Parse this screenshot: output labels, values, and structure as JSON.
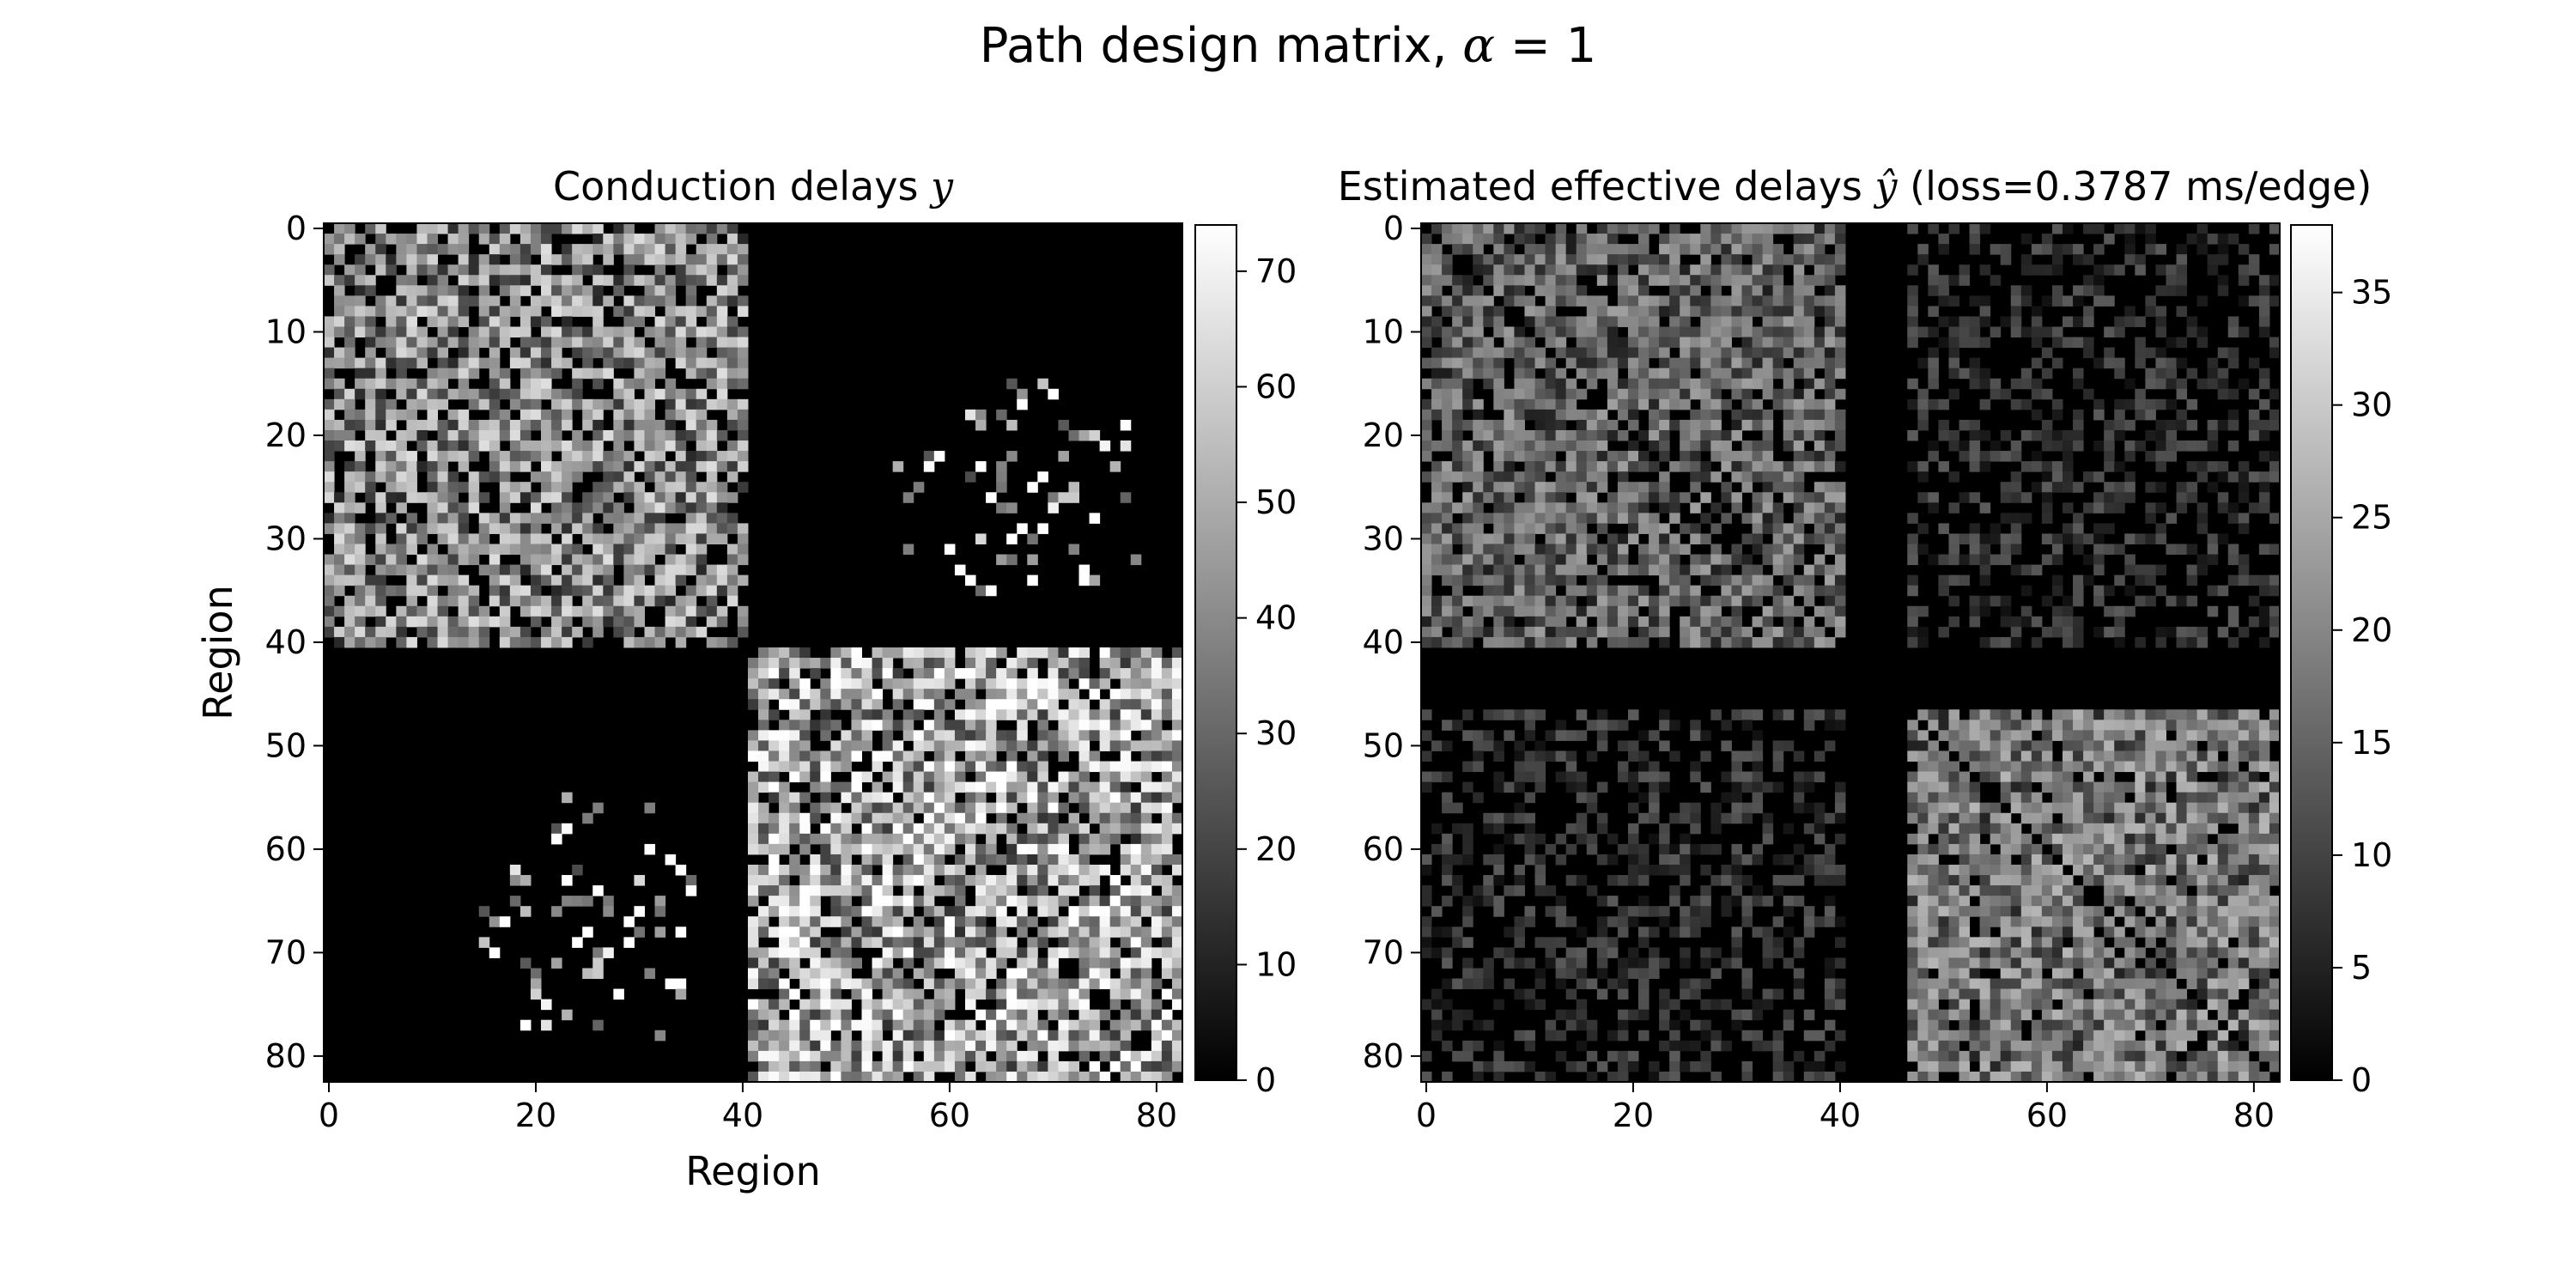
{
  "figure": {
    "suptitle_prefix": "Path design matrix, ",
    "suptitle_symbol": "α",
    "suptitle_suffix": " = 1"
  },
  "chart_data": [
    {
      "type": "heatmap",
      "title_text": "Conduction delays ",
      "title_symbol": "y",
      "xlabel": "Region",
      "ylabel": "Region",
      "size": 83,
      "x_ticks": [
        "0",
        "20",
        "40",
        "60",
        "80"
      ],
      "y_ticks": [
        "0",
        "10",
        "20",
        "30",
        "40",
        "50",
        "60",
        "70",
        "80"
      ],
      "colorbar_ticks": [
        "0",
        "10",
        "20",
        "30",
        "40",
        "50",
        "60",
        "70"
      ],
      "vmin": 0,
      "vmax": 74,
      "colormap": "gray",
      "blocks": [
        {
          "rows": [
            0,
            40
          ],
          "cols": [
            0,
            40
          ],
          "density": 0.55,
          "mean": 38
        },
        {
          "rows": [
            41,
            82
          ],
          "cols": [
            41,
            82
          ],
          "density": 0.6,
          "mean": 45
        },
        {
          "rows": [
            20,
            35
          ],
          "cols": [
            55,
            72
          ],
          "density": 0.06,
          "mean": 50
        },
        {
          "rows": [
            55,
            78
          ],
          "cols": [
            15,
            35
          ],
          "density": 0.08,
          "mean": 55
        }
      ]
    },
    {
      "type": "heatmap",
      "title_prefix": "Estimated effective delays ",
      "title_symbol": "ŷ",
      "title_suffix": " (loss=0.3787 ms/edge)",
      "xlabel": "",
      "ylabel": "",
      "size": 83,
      "x_ticks": [
        "0",
        "20",
        "40",
        "60",
        "80"
      ],
      "y_ticks": [
        "0",
        "10",
        "20",
        "30",
        "40",
        "50",
        "60",
        "70",
        "80"
      ],
      "colorbar_ticks": [
        "0",
        "5",
        "10",
        "15",
        "20",
        "25",
        "30",
        "35"
      ],
      "vmin": 0,
      "vmax": 38,
      "colormap": "gray",
      "diagonal": "dark",
      "blocks": [
        {
          "rows": [
            0,
            40
          ],
          "cols": [
            0,
            40
          ],
          "density": 0.6,
          "mean": 14
        },
        {
          "rows": [
            47,
            82
          ],
          "cols": [
            47,
            82
          ],
          "density": 0.7,
          "mean": 16
        },
        {
          "rows": [
            0,
            40
          ],
          "cols": [
            47,
            82
          ],
          "density": 0.25,
          "mean": 8
        },
        {
          "rows": [
            47,
            82
          ],
          "cols": [
            0,
            40
          ],
          "density": 0.25,
          "mean": 8
        }
      ]
    }
  ]
}
